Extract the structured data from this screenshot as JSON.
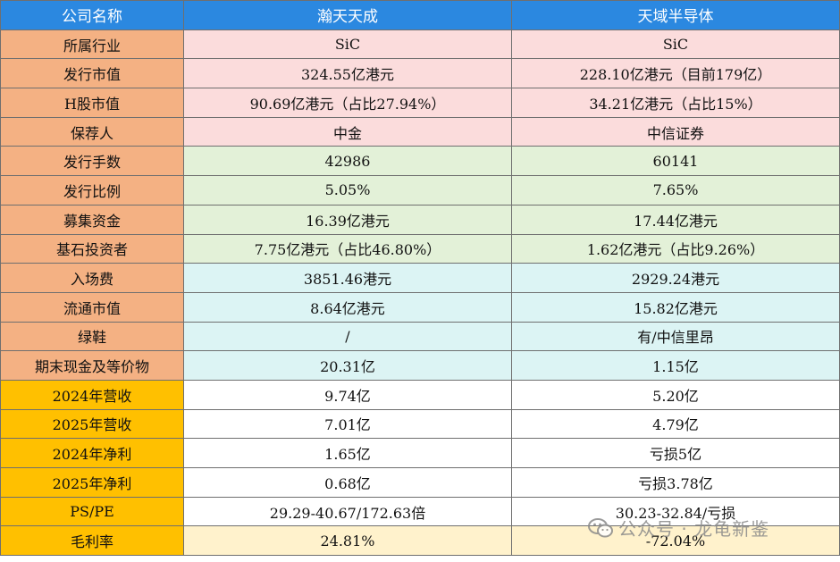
{
  "table": {
    "headers": [
      "公司名称",
      "瀚天天成",
      "天域半导体"
    ],
    "rows": [
      {
        "label": "所属行业",
        "a": "SiC",
        "b": "SiC"
      },
      {
        "label": "发行市值",
        "a": "324.55亿港元",
        "b": "228.10亿港元（目前179亿）"
      },
      {
        "label": "H股市值",
        "a": "90.69亿港元（占比27.94%）",
        "b": "34.21亿港元（占比15%）"
      },
      {
        "label": "保荐人",
        "a": "中金",
        "b": "中信证券"
      },
      {
        "label": "发行手数",
        "a": "42986",
        "b": "60141"
      },
      {
        "label": "发行比例",
        "a": "5.05%",
        "b": "7.65%"
      },
      {
        "label": "募集资金",
        "a": "16.39亿港元",
        "b": "17.44亿港元"
      },
      {
        "label": "基石投资者",
        "a": "7.75亿港元（占比46.80%）",
        "b": "1.62亿港元（占比9.26%）"
      },
      {
        "label": "入场费",
        "a": "3851.46港元",
        "b": "2929.24港元"
      },
      {
        "label": "流通市值",
        "a": "8.64亿港元",
        "b": "15.82亿港元"
      },
      {
        "label": "绿鞋",
        "a": "/",
        "b": "有/中信里昂"
      },
      {
        "label": "期末现金及等价物",
        "a": "20.31亿",
        "b": "1.15亿"
      },
      {
        "label": "2024年营收",
        "a": "9.74亿",
        "b": "5.20亿"
      },
      {
        "label": "2025年营收",
        "a": "7.01亿",
        "b": "4.79亿"
      },
      {
        "label": "2024年净利",
        "a": "1.65亿",
        "b": "亏损5亿"
      },
      {
        "label": "2025年净利",
        "a": "0.68亿",
        "b": "亏损3.78亿"
      },
      {
        "label": "PS/PE",
        "a": "29.29-40.67/172.63倍",
        "b": "30.23-32.84/亏损"
      },
      {
        "label": "毛利率",
        "a": "24.81%",
        "b": "-72.04%"
      }
    ]
  },
  "watermark": {
    "text": "公众号 · 龙龟新鉴",
    "icon": "wechat-icon"
  },
  "colors": {
    "header": "#2b88e0",
    "label_orange": "#f4b183",
    "label_gold": "#ffc000",
    "pink": "#fbdcdc",
    "green": "#e3f1d8",
    "cyan": "#dcf4f4",
    "yellow": "#fff2cc"
  }
}
